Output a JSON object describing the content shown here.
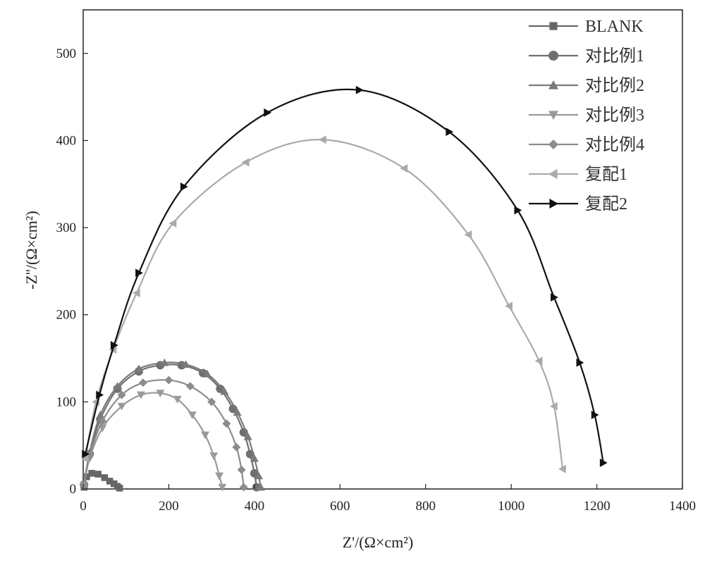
{
  "chart_data": {
    "type": "scatter",
    "xlabel": "Z'/(Ω×cm²)",
    "ylabel": "-Z''/(Ω×cm²)",
    "xlim": [
      0,
      1400
    ],
    "ylim": [
      0,
      550
    ],
    "xticks": [
      0,
      200,
      400,
      600,
      800,
      1000,
      1200,
      1400
    ],
    "yticks": [
      0,
      100,
      200,
      300,
      400,
      500
    ],
    "legend_position": "top-right",
    "series": [
      {
        "name": "BLANK",
        "marker": "square",
        "color": "#666666",
        "x": [
          2,
          8,
          20,
          35,
          50,
          62,
          72,
          80,
          85
        ],
        "y": [
          2,
          14,
          18,
          17,
          13,
          9,
          6,
          3,
          1
        ]
      },
      {
        "name": "对比例1",
        "marker": "circle",
        "color": "#6f6f6f",
        "x": [
          2,
          15,
          40,
          80,
          130,
          180,
          230,
          280,
          320,
          350,
          375,
          390,
          400,
          405
        ],
        "y": [
          5,
          40,
          80,
          115,
          135,
          142,
          142,
          133,
          115,
          92,
          65,
          40,
          18,
          2
        ]
      },
      {
        "name": "对比例2",
        "marker": "triangle-up",
        "color": "#7a7a7a",
        "x": [
          2,
          15,
          40,
          80,
          130,
          190,
          240,
          290,
          330,
          360,
          385,
          400,
          410,
          415
        ],
        "y": [
          5,
          42,
          85,
          118,
          138,
          145,
          143,
          132,
          112,
          88,
          60,
          35,
          15,
          2
        ]
      },
      {
        "name": "对比例3",
        "marker": "triangle-down",
        "color": "#9a9a9a",
        "x": [
          2,
          15,
          45,
          90,
          135,
          180,
          220,
          255,
          285,
          305,
          318,
          325
        ],
        "y": [
          4,
          35,
          70,
          95,
          108,
          110,
          103,
          85,
          62,
          38,
          15,
          2
        ]
      },
      {
        "name": "对比例4",
        "marker": "diamond",
        "color": "#8c8c8c",
        "x": [
          2,
          15,
          45,
          90,
          140,
          200,
          250,
          300,
          335,
          358,
          370,
          375
        ],
        "y": [
          4,
          38,
          78,
          108,
          122,
          125,
          118,
          100,
          75,
          48,
          22,
          2
        ]
      },
      {
        "name": "复配1",
        "marker": "triangle-left",
        "color": "#aaaaaa",
        "x": [
          5,
          30,
          70,
          125,
          210,
          380,
          560,
          750,
          900,
          995,
          1065,
          1100,
          1120
        ],
        "y": [
          35,
          100,
          160,
          225,
          305,
          375,
          401,
          368,
          292,
          210,
          147,
          95,
          23
        ]
      },
      {
        "name": "复配2",
        "marker": "triangle-right",
        "color": "#111111",
        "x": [
          5,
          38,
          72,
          130,
          235,
          430,
          645,
          855,
          1015,
          1100,
          1160,
          1195,
          1215
        ],
        "y": [
          40,
          108,
          165,
          248,
          347,
          432,
          458,
          410,
          320,
          220,
          145,
          85,
          30
        ]
      }
    ]
  }
}
